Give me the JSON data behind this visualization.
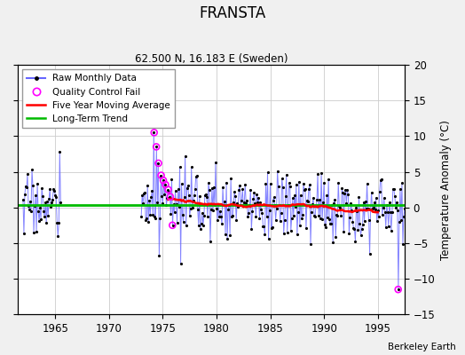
{
  "title": "FRANSTA",
  "subtitle": "62.500 N, 16.183 E (Sweden)",
  "ylabel_right": "Temperature Anomaly (°C)",
  "credit": "Berkeley Earth",
  "xlim": [
    1961.5,
    1997.5
  ],
  "ylim": [
    -15,
    20
  ],
  "yticks": [
    -15,
    -10,
    -5,
    0,
    5,
    10,
    15,
    20
  ],
  "xticks": [
    1965,
    1970,
    1975,
    1980,
    1985,
    1990,
    1995
  ],
  "bg_color": "#f0f0f0",
  "plot_bg_color": "#ffffff",
  "raw_color": "#6666ff",
  "moving_avg_color": "#ff0000",
  "trend_color": "#00bb00",
  "qc_fail_color": "#ff00ff",
  "seed": 17
}
